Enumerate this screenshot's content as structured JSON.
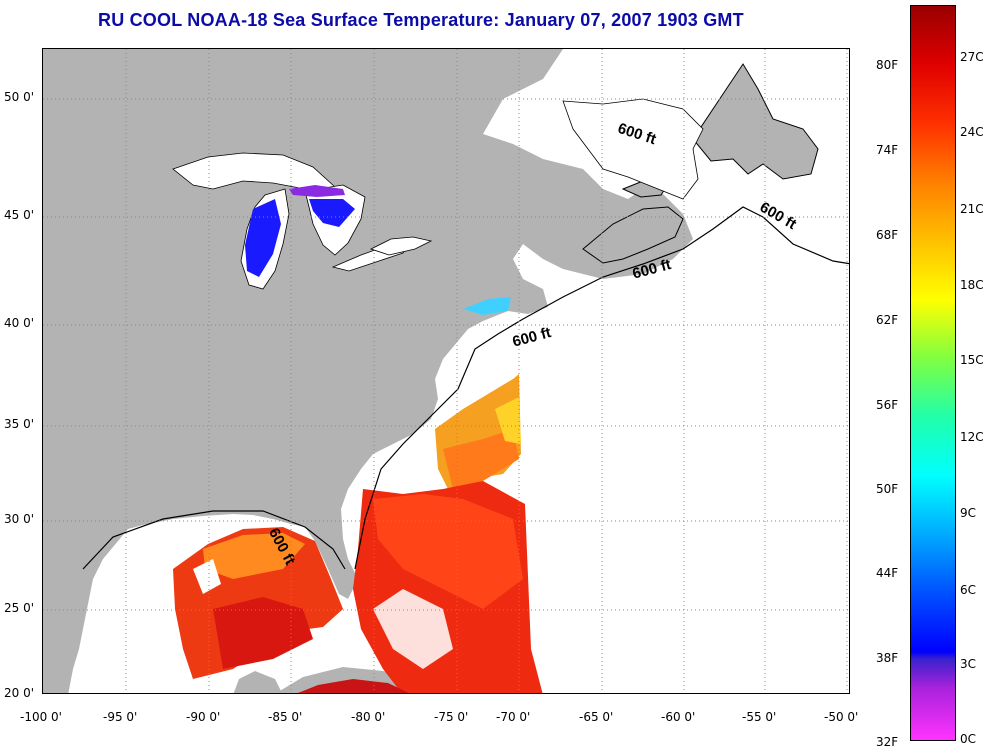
{
  "title": "RU COOL  NOAA-18  Sea Surface Temperature:  January 07, 2007 1903 GMT",
  "map": {
    "lon_range": [
      -100,
      -50
    ],
    "lat_range": [
      20,
      52.5
    ],
    "lat_ticks": [
      {
        "value": 50,
        "label": "50 0'"
      },
      {
        "value": 45,
        "label": "45 0'"
      },
      {
        "value": 40,
        "label": "40 0'"
      },
      {
        "value": 35,
        "label": "35 0'"
      },
      {
        "value": 30,
        "label": "30 0'"
      },
      {
        "value": 25,
        "label": "25 0'"
      },
      {
        "value": 20,
        "label": "20 0'"
      }
    ],
    "lon_ticks": [
      {
        "value": -100,
        "label": "-100 0'"
      },
      {
        "value": -95,
        "label": "-95 0'"
      },
      {
        "value": -90,
        "label": "-90 0'"
      },
      {
        "value": -85,
        "label": "-85 0'"
      },
      {
        "value": -80,
        "label": "-80 0'"
      },
      {
        "value": -75,
        "label": "-75 0'"
      },
      {
        "value": -70,
        "label": "-70 0'"
      },
      {
        "value": -65,
        "label": "-65 0'"
      },
      {
        "value": -60,
        "label": "-60 0'"
      },
      {
        "value": -55,
        "label": "-55 0'"
      },
      {
        "value": -50,
        "label": "-50 0'"
      }
    ],
    "contour_labels": [
      "600 ft",
      "600 ft",
      "600 ft",
      "600 ft",
      "600 ft"
    ],
    "colors": {
      "land": "#b3b3b3",
      "water": "#ffffff",
      "grid": "#8a8a8a"
    }
  },
  "colorbar": {
    "fahrenheit_labels": [
      "80F",
      "74F",
      "68F",
      "62F",
      "56F",
      "50F",
      "44F",
      "38F",
      "32F"
    ],
    "celsius_labels": [
      "27C",
      "24C",
      "21C",
      "18C",
      "15C",
      "12C",
      "9C",
      "6C",
      "3C",
      "0C"
    ]
  }
}
